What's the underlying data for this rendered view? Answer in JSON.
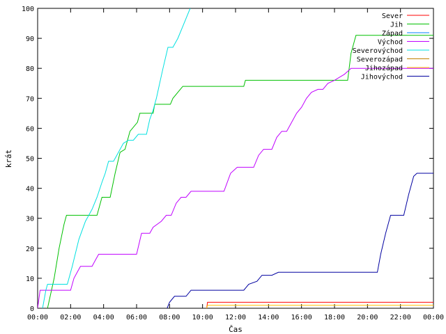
{
  "chart_data": {
    "type": "line",
    "xlabel": "Čas",
    "ylabel": "krát",
    "xlim": [
      0,
      24
    ],
    "ylim": [
      0,
      100
    ],
    "x_ticks": [
      "00:00",
      "02:00",
      "04:00",
      "06:00",
      "08:00",
      "10:00",
      "12:00",
      "14:00",
      "16:00",
      "18:00",
      "20:00",
      "22:00",
      "00:00"
    ],
    "y_ticks": [
      "0",
      "10",
      "20",
      "30",
      "40",
      "50",
      "60",
      "70",
      "80",
      "90",
      "100"
    ],
    "grid": false,
    "legend": "top-right",
    "series": [
      {
        "name": "Sever",
        "color": "#ff0000",
        "points": [
          [
            10.25,
            0
          ],
          [
            10.3,
            2
          ],
          [
            24,
            2
          ]
        ]
      },
      {
        "name": "Jih",
        "color": "#00c000",
        "points": [
          [
            0.6,
            0
          ],
          [
            1.0,
            10
          ],
          [
            1.3,
            20
          ],
          [
            1.6,
            28
          ],
          [
            1.75,
            31
          ],
          [
            3.6,
            31
          ],
          [
            3.9,
            37
          ],
          [
            4.4,
            37
          ],
          [
            4.7,
            45
          ],
          [
            5.0,
            52
          ],
          [
            5.3,
            53
          ],
          [
            5.6,
            59
          ],
          [
            6.05,
            62
          ],
          [
            6.2,
            65
          ],
          [
            7.0,
            65
          ],
          [
            7.1,
            68
          ],
          [
            8.05,
            68
          ],
          [
            8.2,
            70
          ],
          [
            8.5,
            72
          ],
          [
            8.8,
            74
          ],
          [
            12.5,
            74
          ],
          [
            12.6,
            76
          ],
          [
            18.8,
            76
          ],
          [
            19.0,
            85
          ],
          [
            19.3,
            91
          ],
          [
            24,
            91
          ]
        ]
      },
      {
        "name": "Západ",
        "color": "#0080ff",
        "points": [
          [
            24,
            0
          ]
        ]
      },
      {
        "name": "Východ",
        "color": "#c000ff",
        "points": [
          [
            0,
            0
          ],
          [
            0.15,
            6
          ],
          [
            2.0,
            6
          ],
          [
            2.2,
            10
          ],
          [
            2.4,
            12
          ],
          [
            2.6,
            14
          ],
          [
            3.3,
            14
          ],
          [
            3.5,
            16
          ],
          [
            3.7,
            18
          ],
          [
            6.0,
            18
          ],
          [
            6.3,
            25
          ],
          [
            6.8,
            25
          ],
          [
            7.0,
            27
          ],
          [
            7.5,
            29
          ],
          [
            7.8,
            31
          ],
          [
            8.1,
            31
          ],
          [
            8.4,
            35
          ],
          [
            8.7,
            37
          ],
          [
            9.0,
            37
          ],
          [
            9.3,
            39
          ],
          [
            11.3,
            39
          ],
          [
            11.7,
            45
          ],
          [
            12.1,
            47
          ],
          [
            13.1,
            47
          ],
          [
            13.4,
            51
          ],
          [
            13.7,
            53
          ],
          [
            14.2,
            53
          ],
          [
            14.5,
            57
          ],
          [
            14.8,
            59
          ],
          [
            15.1,
            59
          ],
          [
            15.4,
            62
          ],
          [
            15.7,
            65
          ],
          [
            16.0,
            67
          ],
          [
            16.3,
            70
          ],
          [
            16.6,
            72
          ],
          [
            17.0,
            73
          ],
          [
            17.3,
            73
          ],
          [
            17.6,
            75
          ],
          [
            18.0,
            76
          ],
          [
            18.3,
            77
          ],
          [
            18.6,
            78
          ],
          [
            19.0,
            80
          ],
          [
            24,
            80
          ]
        ]
      },
      {
        "name": "Severovýchod",
        "color": "#00e0e0",
        "points": [
          [
            0.3,
            0
          ],
          [
            0.5,
            6
          ],
          [
            0.6,
            8
          ],
          [
            1.8,
            8
          ],
          [
            2.1,
            14
          ],
          [
            2.5,
            23
          ],
          [
            2.9,
            29
          ],
          [
            3.3,
            33
          ],
          [
            3.6,
            37
          ],
          [
            3.9,
            42
          ],
          [
            4.1,
            45
          ],
          [
            4.3,
            49
          ],
          [
            4.6,
            49
          ],
          [
            4.9,
            52
          ],
          [
            5.2,
            55
          ],
          [
            5.5,
            56
          ],
          [
            5.8,
            56
          ],
          [
            6.1,
            58
          ],
          [
            6.6,
            58
          ],
          [
            6.8,
            63
          ],
          [
            7.0,
            66
          ],
          [
            7.2,
            70
          ],
          [
            7.4,
            75
          ],
          [
            7.6,
            80
          ],
          [
            7.9,
            87
          ],
          [
            8.2,
            87
          ],
          [
            8.5,
            90
          ],
          [
            8.8,
            94
          ],
          [
            9.1,
            98
          ],
          [
            9.25,
            100
          ]
        ]
      },
      {
        "name": "Severozápad",
        "color": "#c08000",
        "points": [
          [
            24,
            0
          ]
        ]
      },
      {
        "name": "Jihozápad",
        "color": "#ffc000",
        "points": [
          [
            10.25,
            0
          ],
          [
            10.3,
            1
          ],
          [
            24,
            1
          ]
        ]
      },
      {
        "name": "Jihovýchod",
        "color": "#0000a0",
        "points": [
          [
            7.85,
            0
          ],
          [
            8.0,
            2
          ],
          [
            8.3,
            4
          ],
          [
            9.0,
            4
          ],
          [
            9.3,
            6
          ],
          [
            12.5,
            6
          ],
          [
            12.8,
            8
          ],
          [
            13.3,
            9
          ],
          [
            13.6,
            11
          ],
          [
            14.2,
            11
          ],
          [
            14.6,
            12
          ],
          [
            20.6,
            12
          ],
          [
            20.8,
            18
          ],
          [
            21.1,
            25
          ],
          [
            21.4,
            31
          ],
          [
            22.2,
            31
          ],
          [
            22.5,
            38
          ],
          [
            22.8,
            44
          ],
          [
            23.0,
            45
          ],
          [
            24,
            45
          ]
        ]
      }
    ]
  }
}
